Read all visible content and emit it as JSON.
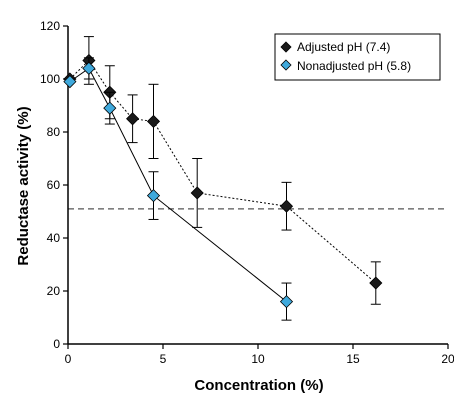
{
  "chart_data": {
    "type": "scatter",
    "xlabel": "Concentration (%)",
    "ylabel": "Reductase activity (%)",
    "xlim": [
      0,
      20
    ],
    "ylim": [
      0,
      120
    ],
    "xticks": [
      0,
      5,
      10,
      15,
      20
    ],
    "yticks": [
      0,
      20,
      40,
      60,
      80,
      100,
      120
    ],
    "grid": false,
    "reference_line": {
      "y": 51,
      "style": "dashed"
    },
    "legend_position": "top-right",
    "series": [
      {
        "name": "Adjusted pH (7.4)",
        "marker": "diamond",
        "color": "#1a1a1a",
        "line": "dotted",
        "x": [
          0.1,
          1.1,
          2.2,
          3.4,
          4.5,
          6.8,
          11.5,
          16.2
        ],
        "y": [
          100,
          107,
          95,
          85,
          84,
          57,
          52,
          23
        ],
        "err": [
          0,
          9,
          10,
          9,
          14,
          13,
          9,
          8
        ]
      },
      {
        "name": "Nonadjusted pH (5.8)",
        "marker": "diamond",
        "color": "#3fa9dc",
        "line": "solid",
        "x": [
          0.1,
          1.1,
          2.2,
          4.5,
          11.5
        ],
        "y": [
          99,
          104,
          89,
          56,
          16
        ],
        "err": [
          0,
          4,
          6,
          9,
          7
        ]
      }
    ]
  }
}
